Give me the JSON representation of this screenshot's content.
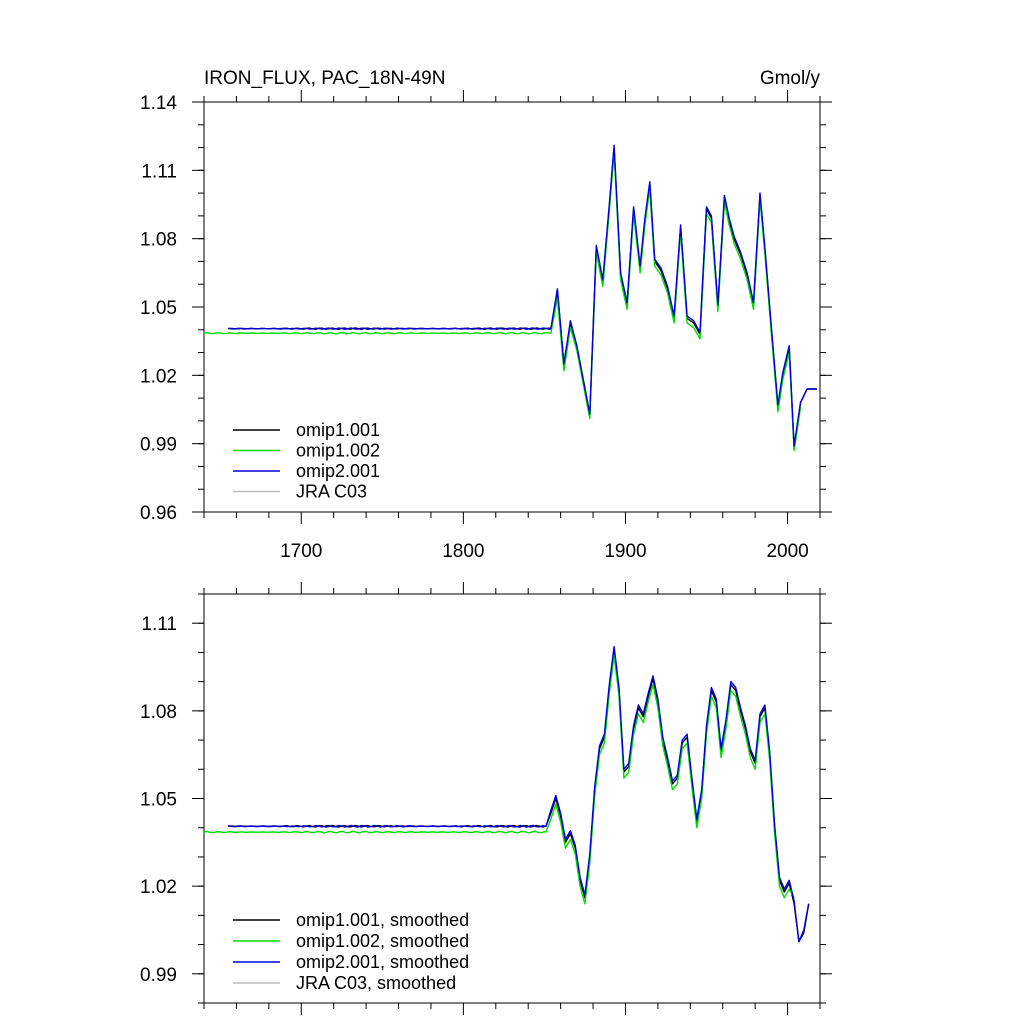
{
  "title_left": "IRON_FLUX, PAC_18N-49N",
  "title_right": "Gmol/y",
  "colors": {
    "omip1_001": "#000000",
    "omip1_002": "#00dd00",
    "omip2_001": "#0000dd",
    "jra_c03": "#bbbbbb"
  },
  "chart_data": [
    {
      "type": "line",
      "xlim": [
        1640,
        2020
      ],
      "ylim": [
        0.96,
        1.14
      ],
      "xticks": [
        1700,
        1800,
        1900,
        2000
      ],
      "xtick_labels": [
        "1700",
        "1800",
        "1900",
        "2000"
      ],
      "yticks": [
        0.96,
        0.99,
        1.02,
        1.05,
        1.08,
        1.11,
        1.14
      ],
      "ytick_labels": [
        "0.96",
        "0.99",
        "1.02",
        "1.05",
        "1.08",
        "1.11",
        "1.14"
      ],
      "legend_position": "bottom-left",
      "series": [
        {
          "name": "omip1.001",
          "color": "#000000",
          "spinup": [
            1655,
            1854,
            1.0405
          ],
          "x": [
            1854,
            1858,
            1862,
            1866,
            1870,
            1874,
            1878,
            1882,
            1886,
            1890,
            1893,
            1897,
            1901,
            1905,
            1909,
            1912,
            1915,
            1918,
            1922,
            1926,
            1930,
            1934,
            1938,
            1942,
            1946,
            1950,
            1953,
            1957,
            1961,
            1964,
            1967,
            1971,
            1975,
            1979,
            1983,
            1986,
            1990,
            1994,
            1997,
            2001,
            2004,
            2008,
            2012,
            2018
          ],
          "y": [
            1.0405,
            1.057,
            1.025,
            1.043,
            1.033,
            1.018,
            1.003,
            1.076,
            1.061,
            1.094,
            1.12,
            1.064,
            1.051,
            1.093,
            1.067,
            1.088,
            1.104,
            1.07,
            1.066,
            1.058,
            1.045,
            1.085,
            1.045,
            1.043,
            1.038,
            1.093,
            1.089,
            1.05,
            1.098,
            1.088,
            1.08,
            1.073,
            1.064,
            1.051,
            1.099,
            1.075,
            1.04,
            1.006,
            1.02,
            1.032,
            0.988,
            1.008,
            1.014,
            1.014
          ]
        },
        {
          "name": "omip1.002",
          "color": "#00dd00",
          "spinup": [
            1640,
            1854,
            1.0385
          ],
          "x": [
            1854,
            1858,
            1862,
            1866,
            1870,
            1874,
            1878,
            1882,
            1886,
            1890,
            1893,
            1897,
            1901,
            1905,
            1909,
            1912,
            1915,
            1918,
            1922,
            1926,
            1930,
            1934,
            1938,
            1942,
            1946,
            1950,
            1953,
            1957,
            1961,
            1964,
            1967,
            1971,
            1975,
            1979,
            1983,
            1986,
            1990,
            1994,
            1997,
            2001,
            2004,
            2008
          ],
          "y": [
            1.0385,
            1.054,
            1.022,
            1.041,
            1.031,
            1.016,
            1.001,
            1.074,
            1.059,
            1.092,
            1.118,
            1.062,
            1.049,
            1.091,
            1.065,
            1.086,
            1.102,
            1.068,
            1.064,
            1.056,
            1.043,
            1.083,
            1.043,
            1.041,
            1.036,
            1.091,
            1.087,
            1.048,
            1.096,
            1.086,
            1.078,
            1.071,
            1.062,
            1.049,
            1.097,
            1.073,
            1.038,
            1.004,
            1.018,
            1.03,
            0.987,
            1.006
          ]
        },
        {
          "name": "omip2.001",
          "color": "#0000dd",
          "spinup": [
            1655,
            1854,
            1.0405
          ],
          "x": [
            1854,
            1858,
            1862,
            1866,
            1870,
            1874,
            1878,
            1882,
            1886,
            1890,
            1893,
            1897,
            1901,
            1905,
            1909,
            1912,
            1915,
            1918,
            1922,
            1926,
            1930,
            1934,
            1938,
            1942,
            1946,
            1950,
            1953,
            1957,
            1961,
            1964,
            1967,
            1971,
            1975,
            1979,
            1983,
            1986,
            1990,
            1994,
            1997,
            2001,
            2004,
            2008,
            2012,
            2018
          ],
          "y": [
            1.0405,
            1.058,
            1.025,
            1.044,
            1.033,
            1.018,
            1.003,
            1.077,
            1.062,
            1.095,
            1.121,
            1.065,
            1.052,
            1.094,
            1.068,
            1.089,
            1.105,
            1.071,
            1.067,
            1.059,
            1.046,
            1.086,
            1.046,
            1.044,
            1.039,
            1.094,
            1.09,
            1.051,
            1.099,
            1.089,
            1.081,
            1.074,
            1.065,
            1.052,
            1.1,
            1.076,
            1.041,
            1.007,
            1.021,
            1.033,
            0.989,
            1.008,
            1.014,
            1.014
          ]
        },
        {
          "name": "JRA C03",
          "color": "#bbbbbb",
          "x": [],
          "y": []
        }
      ]
    },
    {
      "type": "line",
      "xlim": [
        1640,
        2020
      ],
      "ylim": [
        0.98,
        1.12
      ],
      "xticks": [
        1700,
        1800,
        1900,
        2000
      ],
      "xtick_labels": [],
      "yticks": [
        0.99,
        1.02,
        1.05,
        1.08,
        1.11
      ],
      "ytick_labels": [
        "0.99",
        "1.02",
        "1.05",
        "1.08",
        "1.11"
      ],
      "legend_position": "bottom-left",
      "series": [
        {
          "name": "omip1.001, smoothed",
          "color": "#000000",
          "spinup": [
            1655,
            1851,
            1.0405
          ],
          "x": [
            1851,
            1854,
            1857,
            1860,
            1863,
            1866,
            1869,
            1872,
            1875,
            1878,
            1881,
            1884,
            1887,
            1890,
            1893,
            1896,
            1899,
            1902,
            1905,
            1908,
            1911,
            1914,
            1917,
            1920,
            1923,
            1926,
            1929,
            1932,
            1935,
            1938,
            1941,
            1944,
            1947,
            1950,
            1953,
            1956,
            1959,
            1962,
            1965,
            1968,
            1971,
            1974,
            1977,
            1980,
            1983,
            1986,
            1989,
            1992,
            1995,
            1998,
            2001,
            2004,
            2007,
            2010,
            2013
          ],
          "y": [
            1.0405,
            1.045,
            1.05,
            1.044,
            1.035,
            1.038,
            1.033,
            1.022,
            1.016,
            1.03,
            1.053,
            1.067,
            1.071,
            1.088,
            1.101,
            1.087,
            1.059,
            1.061,
            1.074,
            1.081,
            1.078,
            1.085,
            1.091,
            1.083,
            1.07,
            1.063,
            1.055,
            1.057,
            1.069,
            1.071,
            1.056,
            1.042,
            1.052,
            1.074,
            1.087,
            1.083,
            1.066,
            1.076,
            1.089,
            1.087,
            1.08,
            1.074,
            1.066,
            1.062,
            1.078,
            1.081,
            1.065,
            1.04,
            1.022,
            1.018,
            1.021,
            1.014,
            1.001,
            1.004,
            1.014
          ]
        },
        {
          "name": "omip1.002, smoothed",
          "color": "#00dd00",
          "spinup": [
            1640,
            1851,
            1.0385
          ],
          "x": [
            1851,
            1854,
            1857,
            1860,
            1863,
            1866,
            1869,
            1872,
            1875,
            1878,
            1881,
            1884,
            1887,
            1890,
            1893,
            1896,
            1899,
            1902,
            1905,
            1908,
            1911,
            1914,
            1917,
            1920,
            1923,
            1926,
            1929,
            1932,
            1935,
            1938,
            1941,
            1944,
            1947,
            1950,
            1953,
            1956,
            1959,
            1962,
            1965,
            1968,
            1971,
            1974,
            1977,
            1980,
            1983,
            1986,
            1989,
            1992,
            1995,
            1998,
            2001,
            2004
          ],
          "y": [
            1.0385,
            1.043,
            1.048,
            1.042,
            1.033,
            1.036,
            1.031,
            1.02,
            1.014,
            1.028,
            1.051,
            1.065,
            1.069,
            1.086,
            1.099,
            1.085,
            1.057,
            1.059,
            1.072,
            1.079,
            1.076,
            1.083,
            1.089,
            1.081,
            1.068,
            1.061,
            1.053,
            1.055,
            1.067,
            1.069,
            1.054,
            1.04,
            1.05,
            1.072,
            1.085,
            1.081,
            1.064,
            1.074,
            1.087,
            1.085,
            1.078,
            1.072,
            1.064,
            1.06,
            1.076,
            1.079,
            1.063,
            1.038,
            1.02,
            1.016,
            1.019,
            1.016
          ]
        },
        {
          "name": "omip2.001, smoothed",
          "color": "#0000dd",
          "spinup": [
            1655,
            1851,
            1.0405
          ],
          "x": [
            1851,
            1854,
            1857,
            1860,
            1863,
            1866,
            1869,
            1872,
            1875,
            1878,
            1881,
            1884,
            1887,
            1890,
            1893,
            1896,
            1899,
            1902,
            1905,
            1908,
            1911,
            1914,
            1917,
            1920,
            1923,
            1926,
            1929,
            1932,
            1935,
            1938,
            1941,
            1944,
            1947,
            1950,
            1953,
            1956,
            1959,
            1962,
            1965,
            1968,
            1971,
            1974,
            1977,
            1980,
            1983,
            1986,
            1989,
            1992,
            1995,
            1998,
            2001,
            2004,
            2007,
            2010,
            2013
          ],
          "y": [
            1.0405,
            1.046,
            1.051,
            1.045,
            1.036,
            1.039,
            1.034,
            1.023,
            1.017,
            1.031,
            1.054,
            1.068,
            1.072,
            1.089,
            1.102,
            1.088,
            1.06,
            1.062,
            1.075,
            1.082,
            1.079,
            1.086,
            1.092,
            1.084,
            1.071,
            1.064,
            1.056,
            1.058,
            1.07,
            1.072,
            1.057,
            1.043,
            1.053,
            1.075,
            1.088,
            1.084,
            1.067,
            1.077,
            1.09,
            1.088,
            1.081,
            1.075,
            1.067,
            1.063,
            1.079,
            1.082,
            1.066,
            1.041,
            1.023,
            1.019,
            1.022,
            1.015,
            1.001,
            1.005,
            1.014
          ]
        },
        {
          "name": "JRA C03, smoothed",
          "color": "#bbbbbb",
          "x": [],
          "y": []
        }
      ]
    }
  ]
}
